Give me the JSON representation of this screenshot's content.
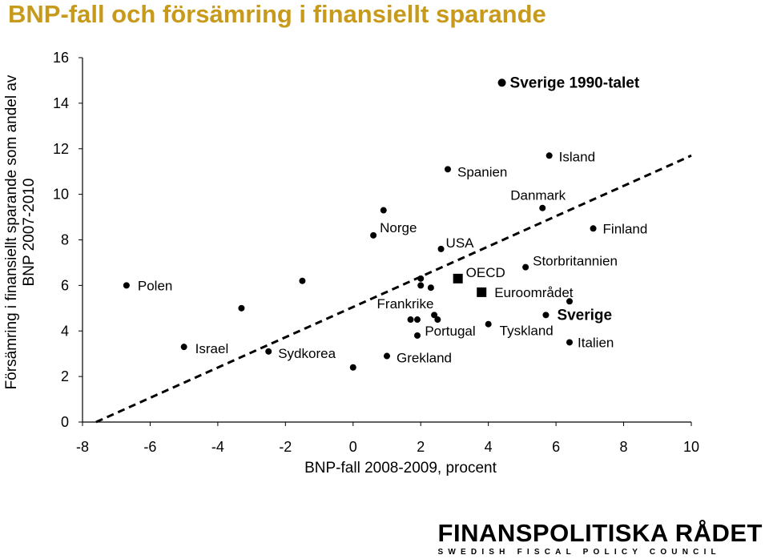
{
  "title": "BNP-fall och försämring i finansiellt sparande",
  "brand": {
    "name": "FINANSPOLITISKA RÅDET",
    "subtitle": "SWEDISH FISCAL POLICY COUNCIL"
  },
  "chart_data": {
    "type": "scatter",
    "xlabel": "BNP-fall 2008-2009, procent",
    "ylabel": [
      "Försämring i finansiellt sparande som andel av",
      "BNP 2007-2010"
    ],
    "xlim": [
      -8,
      10
    ],
    "ylim": [
      0,
      16
    ],
    "xticks": [
      "-8",
      "-6",
      "-4",
      "-2",
      "0",
      "2",
      "4",
      "6",
      "8",
      "10"
    ],
    "yticks": [
      "0",
      "2",
      "4",
      "6",
      "8",
      "10",
      "12",
      "14",
      "16"
    ],
    "grid": false,
    "points": [
      {
        "label": "Polen",
        "x": -6.7,
        "y": 6.0
      },
      {
        "label": "Israel",
        "x": -5.0,
        "y": 3.3
      },
      {
        "label": "",
        "x": -3.3,
        "y": 5.0
      },
      {
        "label": "",
        "x": -1.5,
        "y": 6.2
      },
      {
        "label": "Sydkorea",
        "x": -2.5,
        "y": 3.1
      },
      {
        "label": "",
        "x": 0.0,
        "y": 2.4
      },
      {
        "label": "Norge",
        "x": 0.6,
        "y": 8.2
      },
      {
        "label": "",
        "x": 0.9,
        "y": 9.3
      },
      {
        "label": "Grekland",
        "x": 1.0,
        "y": 2.9
      },
      {
        "label": "",
        "x": 2.0,
        "y": 6.3
      },
      {
        "label": "",
        "x": 2.0,
        "y": 6.0
      },
      {
        "label": "",
        "x": 2.3,
        "y": 5.9
      },
      {
        "label": "Frankrike",
        "x": 1.7,
        "y": 4.5
      },
      {
        "label": "",
        "x": 1.9,
        "y": 4.5
      },
      {
        "label": "",
        "x": 1.9,
        "y": 3.8
      },
      {
        "label": "",
        "x": 2.4,
        "y": 4.7
      },
      {
        "label": "Portugal",
        "x": 2.5,
        "y": 4.5
      },
      {
        "label": "USA",
        "x": 2.6,
        "y": 7.6
      },
      {
        "label": "Spanien",
        "x": 2.8,
        "y": 11.1
      },
      {
        "label": "Tyskland",
        "x": 4.0,
        "y": 4.3
      },
      {
        "label": "Sverige 1990-talet",
        "x": 4.4,
        "y": 14.9
      },
      {
        "label": "Storbritannien",
        "x": 5.1,
        "y": 6.8
      },
      {
        "label": "Danmark",
        "x": 5.6,
        "y": 9.4
      },
      {
        "label": "Sverige",
        "x": 5.7,
        "y": 4.7
      },
      {
        "label": "Island",
        "x": 5.8,
        "y": 11.7
      },
      {
        "label": "",
        "x": 6.4,
        "y": 5.3
      },
      {
        "label": "Italien",
        "x": 6.4,
        "y": 3.5
      },
      {
        "label": "Finland",
        "x": 7.1,
        "y": 8.5
      }
    ],
    "aggregates": [
      {
        "label": "OECD",
        "x": 3.1,
        "y": 6.3
      },
      {
        "label": "Euroområdet",
        "x": 3.8,
        "y": 5.7
      }
    ],
    "trendline": {
      "style": "dashed",
      "x": [
        -7.6,
        10.0
      ],
      "y": [
        0.0,
        11.7
      ]
    }
  }
}
